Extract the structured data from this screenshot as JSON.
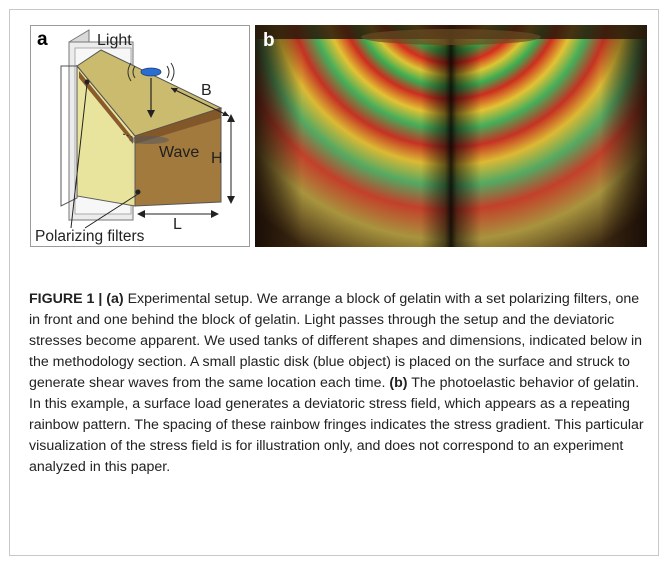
{
  "panel_a": {
    "letter": "a",
    "labels": {
      "light": "Light",
      "width": "B",
      "wave": "Wave",
      "height": "H",
      "length": "L",
      "filters": "Polarizing filters"
    }
  },
  "panel_b": {
    "letter": "b"
  },
  "caption": {
    "figure_label": "FIGURE 1 |",
    "part_a_marker": "(a)",
    "part_a_text": " Experimental setup. We arrange a block of gelatin with a set polarizing filters, one in front and one behind the block of gelatin. Light passes through the setup and the deviatoric stresses become apparent. We used tanks of different shapes and dimensions, indicated below in the methodology section. A small plastic disk (blue object) is placed on the surface and struck to generate shear waves from the same location each time. ",
    "part_b_marker": "(b)",
    "part_b_text": " The photoelastic behavior of gelatin. In this example, a surface load generates a deviatoric stress field, which appears as a repeating rainbow pattern. The spacing of these rainbow fringes indicates the stress gradient. This particular visualization of the stress field is for illustration only, and does not correspond to an experiment analyzed in this paper."
  }
}
